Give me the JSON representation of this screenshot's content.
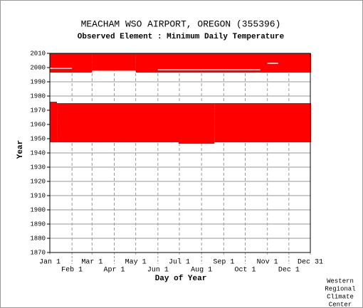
{
  "chart_data": {
    "type": "availability",
    "title": "MEACHAM WSO AIRPORT, OREGON   (355396)",
    "subtitle": "Observed Element : Minimum Daily Temperature",
    "x_label": "Day of Year",
    "y_label": "Year",
    "credit": [
      "Western",
      "Regional",
      "Climate",
      "Center"
    ],
    "color": "#ff0000",
    "xlim": [
      1,
      365
    ],
    "ylim": [
      1870,
      2010
    ],
    "xticks": [
      {
        "value": 1,
        "label": "Jan 1"
      },
      {
        "value": 32,
        "label": "Feb 1"
      },
      {
        "value": 60,
        "label": "Mar 1"
      },
      {
        "value": 91,
        "label": "Apr 1"
      },
      {
        "value": 121,
        "label": "May 1"
      },
      {
        "value": 152,
        "label": "Jun 1"
      },
      {
        "value": 182,
        "label": "Jul 1"
      },
      {
        "value": 213,
        "label": "Aug 1"
      },
      {
        "value": 244,
        "label": "Sep 1"
      },
      {
        "value": 274,
        "label": "Oct 1"
      },
      {
        "value": 305,
        "label": "Nov 1"
      },
      {
        "value": 335,
        "label": "Dec 1"
      },
      {
        "value": 365,
        "label": "Dec 31"
      }
    ],
    "yticks": [
      1870,
      1880,
      1890,
      1900,
      1910,
      1920,
      1930,
      1940,
      1950,
      1960,
      1970,
      1980,
      1990,
      2000,
      2010
    ],
    "blocks": [
      {
        "days": [
          1,
          59
        ],
        "years": [
          1996.5,
          2010
        ]
      },
      {
        "days": [
          60,
          120
        ],
        "years": [
          1998,
          2010
        ]
      },
      {
        "days": [
          121,
          365
        ],
        "years": [
          1996.5,
          2010
        ]
      },
      {
        "days": [
          1,
          10
        ],
        "years": [
          1947.5,
          1976
        ]
      },
      {
        "days": [
          11,
          180
        ],
        "years": [
          1947.5,
          1975
        ]
      },
      {
        "days": [
          181,
          230
        ],
        "years": [
          1946.5,
          1975
        ]
      },
      {
        "days": [
          231,
          365
        ],
        "years": [
          1947.5,
          1975
        ]
      }
    ],
    "gaps": [
      {
        "days": [
          1,
          32
        ],
        "year": 1999.5
      },
      {
        "days": [
          152,
          295
        ],
        "year": 1998.5
      },
      {
        "days": [
          305,
          320
        ],
        "year": 2003
      }
    ]
  }
}
